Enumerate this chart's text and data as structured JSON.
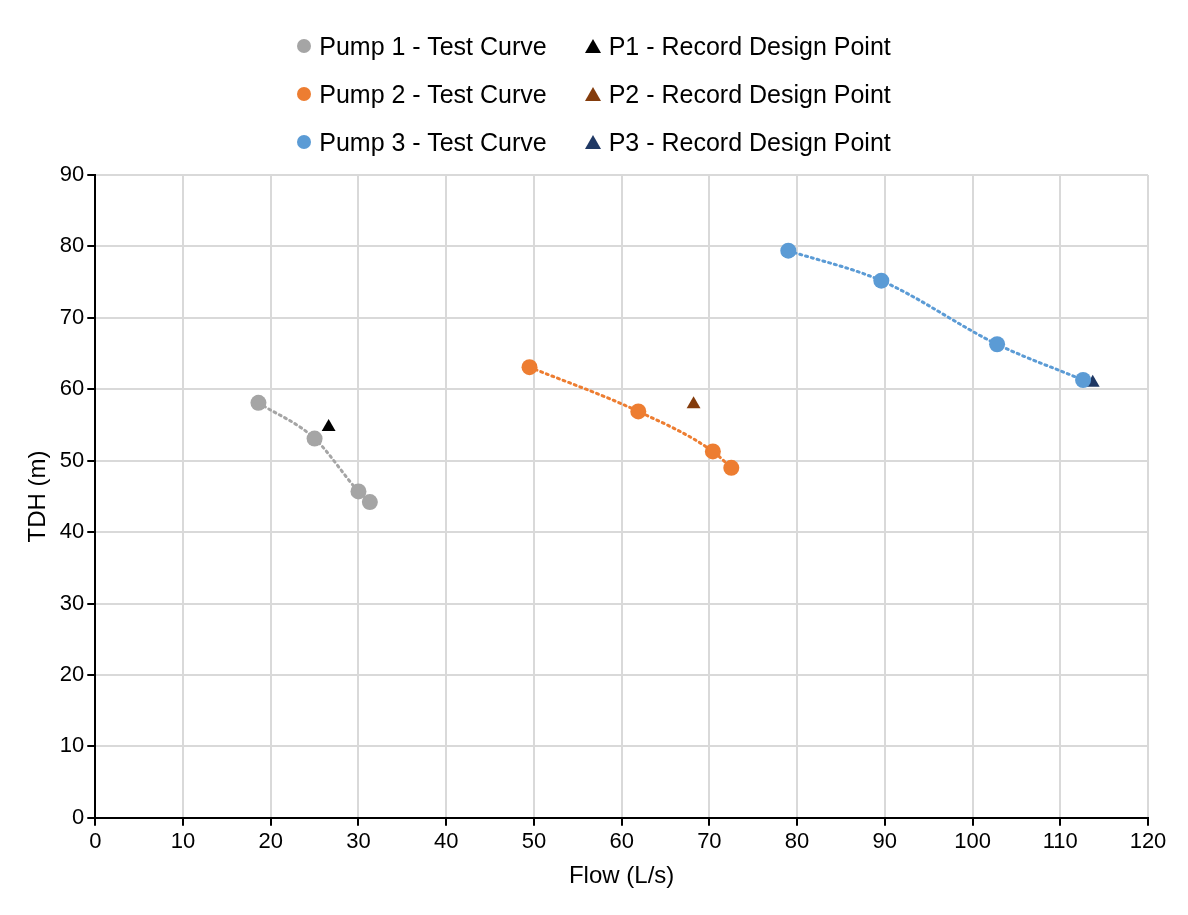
{
  "chart_data": {
    "type": "scatter",
    "xlabel": "Flow (L/s)",
    "ylabel": "TDH (m)",
    "xlim": [
      0,
      120
    ],
    "xticks": [
      0,
      10,
      20,
      30,
      40,
      50,
      60,
      70,
      80,
      90,
      100,
      110,
      120
    ],
    "ylim": [
      0,
      90
    ],
    "yticks": [
      0,
      10,
      20,
      30,
      40,
      50,
      60,
      70,
      80,
      90
    ],
    "grid": true,
    "legend": "top",
    "marker": "circle",
    "series": [
      {
        "name": "Pump 1 - Test Curve",
        "color": "#a5a5a5",
        "x": [
          18.6,
          25.0,
          30.0,
          31.3
        ],
        "values": [
          58.1,
          53.1,
          45.7,
          44.2
        ]
      },
      {
        "name": "Pump 2 - Test Curve",
        "color": "#ed7d31",
        "x": [
          49.5,
          61.9,
          70.4,
          72.5
        ],
        "values": [
          63.1,
          56.9,
          51.3,
          49.0
        ]
      },
      {
        "name": "Pump 3 - Test Curve",
        "color": "#5b9bd5",
        "x": [
          79.0,
          89.6,
          102.8,
          112.6
        ],
        "values": [
          79.4,
          75.2,
          66.3,
          61.3
        ]
      },
      {
        "name": "P1 - Record Design Point",
        "color": "#000000",
        "marker": "triangle",
        "x": [
          26.6
        ],
        "values": [
          54.7
        ]
      },
      {
        "name": "P2 - Record Design Point",
        "color": "#843c0c",
        "marker": "triangle",
        "x": [
          68.2
        ],
        "values": [
          57.9
        ]
      },
      {
        "name": "P3 - Record Design Point",
        "color": "#1f3864",
        "marker": "triangle",
        "x": [
          113.7
        ],
        "values": [
          60.9
        ]
      },
      {
        "type": "line",
        "color": "#a5a5a5",
        "line_style": "dotted",
        "marker": "none",
        "x": [
          18.6,
          25.0,
          30.0,
          31.3
        ],
        "values": [
          58.1,
          53.1,
          45.7,
          44.2
        ]
      },
      {
        "type": "line",
        "color": "#ed7d31",
        "line_style": "dotted",
        "marker": "none",
        "x": [
          49.5,
          61.9,
          70.4,
          72.5
        ],
        "values": [
          63.1,
          56.9,
          51.3,
          49.0
        ]
      },
      {
        "type": "line",
        "color": "#5b9bd5",
        "line_style": "dotted",
        "marker": "none",
        "x": [
          79.0,
          89.6,
          102.8,
          112.6
        ],
        "values": [
          79.4,
          75.2,
          66.3,
          61.3
        ]
      }
    ]
  }
}
